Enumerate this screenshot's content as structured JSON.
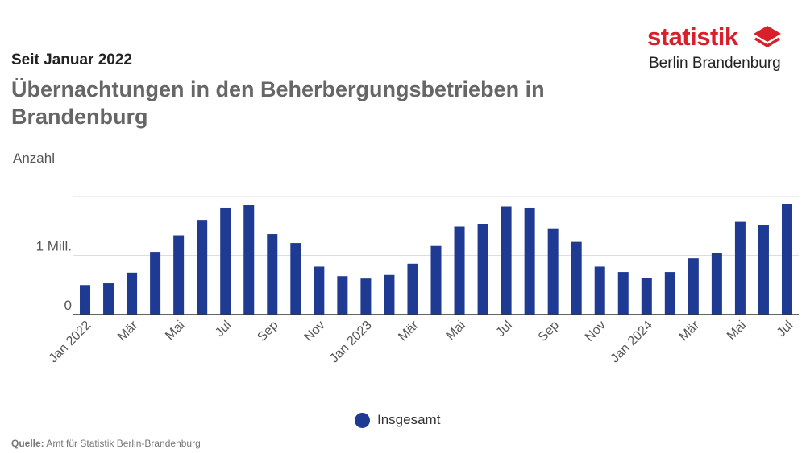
{
  "header": {
    "subtitle": "Seit Januar 2022",
    "title": "Übernachtungen in den Beherbergungsbetrieben in Brandenburg",
    "unit": "Anzahl"
  },
  "logo": {
    "wordmark": "statistik",
    "subline": "Berlin Brandenburg",
    "icon": "stacked-layers-icon",
    "color": "#d81f2a"
  },
  "legend": {
    "label": "Insgesamt"
  },
  "source": {
    "prefix": "Quelle:",
    "text": "Amt für Statistik Berlin-Brandenburg"
  },
  "colors": {
    "bar": "#1f3a93",
    "grid": "#dddddd",
    "axis": "#333333"
  },
  "chart_data": {
    "type": "bar",
    "ylabel": "Anzahl",
    "ylim": [
      0,
      2000000
    ],
    "yticks": [
      {
        "value": 0,
        "label": "0"
      },
      {
        "value": 1000000,
        "label": "1 Mill."
      },
      {
        "value": 2000000,
        "label": ""
      }
    ],
    "categories": [
      "Jan 2022",
      "Feb 2022",
      "Mär 2022",
      "Apr 2022",
      "Mai 2022",
      "Jun 2022",
      "Jul 2022",
      "Aug 2022",
      "Sep 2022",
      "Okt 2022",
      "Nov 2022",
      "Dez 2022",
      "Jan 2023",
      "Feb 2023",
      "Mär 2023",
      "Apr 2023",
      "Mai 2023",
      "Jun 2023",
      "Jul 2023",
      "Aug 2023",
      "Sep 2023",
      "Okt 2023",
      "Nov 2023",
      "Dez 2023",
      "Jan 2024",
      "Feb 2024",
      "Mär 2024",
      "Apr 2024",
      "Mai 2024",
      "Jun 2024",
      "Jul 2024"
    ],
    "xtick_labels": [
      {
        "index": 0,
        "label": "Jan 2022"
      },
      {
        "index": 2,
        "label": "Mär"
      },
      {
        "index": 4,
        "label": "Mai"
      },
      {
        "index": 6,
        "label": "Jul"
      },
      {
        "index": 8,
        "label": "Sep"
      },
      {
        "index": 10,
        "label": "Nov"
      },
      {
        "index": 12,
        "label": "Jan 2023"
      },
      {
        "index": 14,
        "label": "Mär"
      },
      {
        "index": 16,
        "label": "Mai"
      },
      {
        "index": 18,
        "label": "Jul"
      },
      {
        "index": 20,
        "label": "Sep"
      },
      {
        "index": 22,
        "label": "Nov"
      },
      {
        "index": 24,
        "label": "Jan 2024"
      },
      {
        "index": 26,
        "label": "Mär"
      },
      {
        "index": 28,
        "label": "Mai"
      },
      {
        "index": 30,
        "label": "Jul"
      }
    ],
    "series": [
      {
        "name": "Insgesamt",
        "values": [
          500000,
          530000,
          710000,
          1060000,
          1340000,
          1590000,
          1810000,
          1850000,
          1360000,
          1210000,
          810000,
          650000,
          610000,
          670000,
          860000,
          1160000,
          1490000,
          1530000,
          1830000,
          1810000,
          1460000,
          1230000,
          810000,
          720000,
          620000,
          720000,
          950000,
          1040000,
          1570000,
          1510000,
          1870000
        ]
      }
    ],
    "legend": "bottom-center",
    "grid": true
  }
}
